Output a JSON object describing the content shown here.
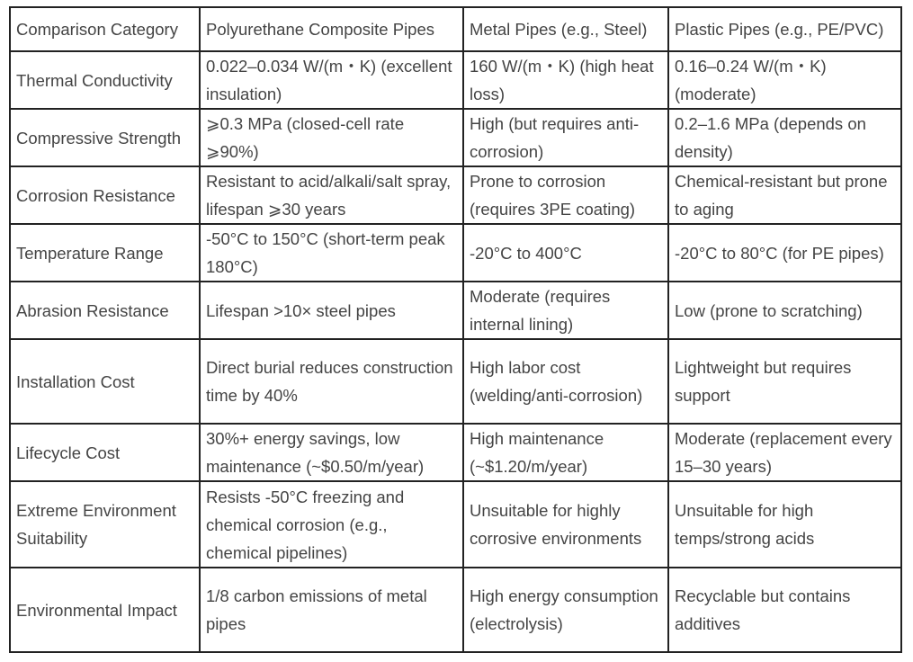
{
  "table": {
    "header": [
      "Comparison Category",
      "Polyurethane Composite Pipes",
      "Metal Pipes (e.g., Steel)",
      "Plastic Pipes (e.g., PE/PVC)"
    ],
    "rows": [
      [
        "Thermal Conductivity",
        "0.022–0.034 W/(m・K) (excellent insulation)",
        "160 W/(m・K) (high heat loss)",
        "0.16–0.24 W/(m・K) (moderate)"
      ],
      [
        "Compressive Strength",
        "⩾0.3 MPa (closed-cell rate ⩾90%)",
        "High (but requires anti-corrosion)",
        "0.2–1.6 MPa (depends on density)"
      ],
      [
        "Corrosion Resistance",
        "Resistant to acid/alkali/salt spray, lifespan ⩾30 years",
        "Prone to corrosion (requires 3PE coating)",
        "Chemical-resistant but prone to aging"
      ],
      [
        "Temperature Range",
        "-50°C to 150°C (short-term peak 180°C)",
        "-20°C to 400°C",
        "-20°C to 80°C (for PE pipes)"
      ],
      [
        "Abrasion Resistance",
        "Lifespan >10× steel pipes",
        "Moderate (requires internal lining)",
        "Low (prone to scratching)"
      ],
      [
        "Installation Cost",
        "Direct burial reduces construction time by 40%",
        "High labor cost (welding/anti-corrosion)",
        "Lightweight but requires support"
      ],
      [
        "Lifecycle Cost",
        "30%+ energy savings, low maintenance (~$0.50/m/year)",
        "High maintenance (~$1.20/m/year)",
        "Moderate (replacement every 15–30 years)"
      ],
      [
        "Extreme Environment Suitability",
        "Resists -50°C freezing and chemical corrosion (e.g., chemical pipelines)",
        "Unsuitable for highly corrosive environments",
        "Unsuitable for high temps/strong acids"
      ],
      [
        "Environmental Impact",
        "1/8 carbon emissions of metal pipes",
        "High energy consumption (electrolysis)",
        "Recyclable but contains additives"
      ]
    ]
  }
}
